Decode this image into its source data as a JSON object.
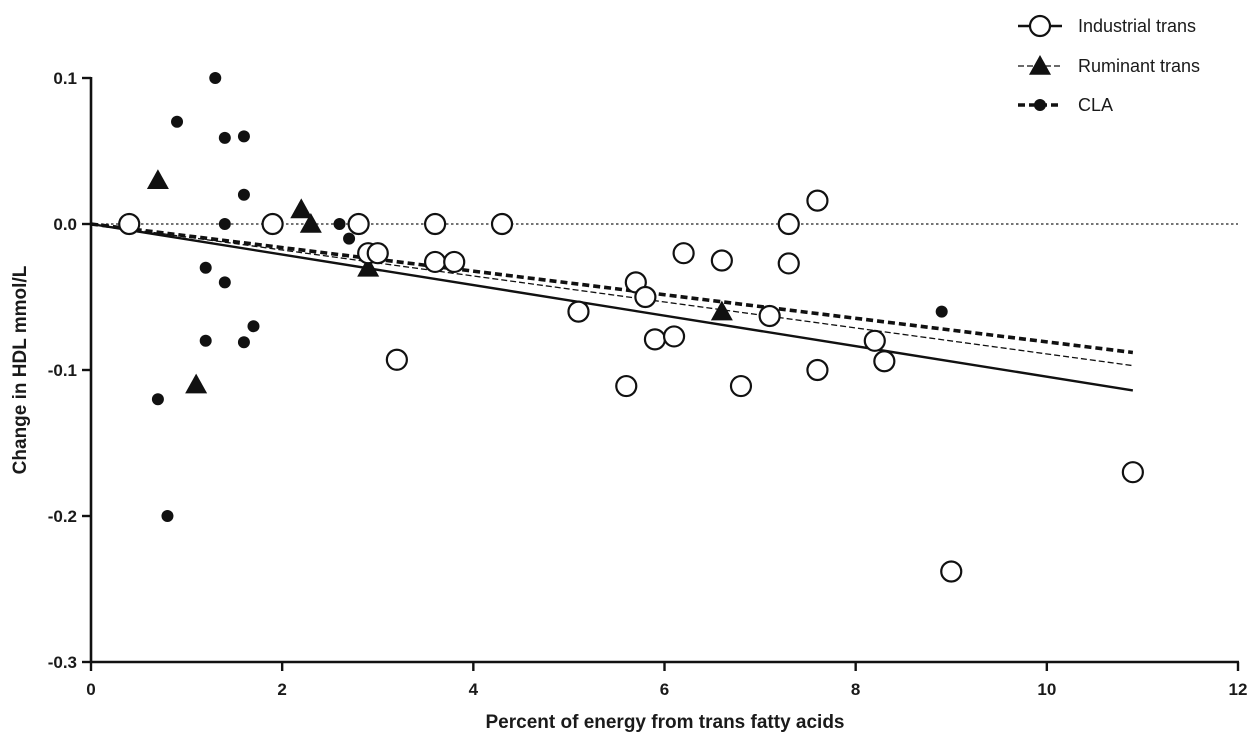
{
  "chart_data": {
    "type": "scatter",
    "title": "",
    "xlabel": "Percent of energy from trans fatty acids",
    "ylabel": "Change in HDL mmol/L",
    "xlim": [
      0,
      12
    ],
    "ylim": [
      -0.3,
      0.1
    ],
    "x_ticks": [
      0,
      2,
      4,
      6,
      8,
      10,
      12
    ],
    "x_tick_labels": [
      "0",
      "2",
      "4",
      "6",
      "8",
      "10",
      "12"
    ],
    "y_ticks": [
      -0.3,
      -0.2,
      -0.1,
      0.0,
      0.1
    ],
    "y_tick_labels": [
      "-0.3",
      "-0.2",
      "-0.1",
      "0.0",
      "0.1"
    ],
    "grid": false,
    "reference_line_y": 0,
    "legend_position": "top-right",
    "series": [
      {
        "name": "Industrial trans",
        "marker": "open-circle",
        "line_style": "solid",
        "points": [
          [
            0.4,
            0.0
          ],
          [
            1.9,
            0.0
          ],
          [
            2.8,
            0.0
          ],
          [
            2.9,
            -0.02
          ],
          [
            3.0,
            -0.02
          ],
          [
            3.2,
            -0.093
          ],
          [
            3.6,
            0.0
          ],
          [
            3.6,
            -0.026
          ],
          [
            3.8,
            -0.026
          ],
          [
            4.3,
            0.0
          ],
          [
            5.1,
            -0.06
          ],
          [
            5.6,
            -0.111
          ],
          [
            5.7,
            -0.04
          ],
          [
            5.8,
            -0.05
          ],
          [
            5.9,
            -0.079
          ],
          [
            6.1,
            -0.077
          ],
          [
            6.2,
            -0.02
          ],
          [
            6.6,
            -0.025
          ],
          [
            6.8,
            -0.111
          ],
          [
            7.1,
            -0.063
          ],
          [
            7.3,
            0.0
          ],
          [
            7.3,
            -0.027
          ],
          [
            7.6,
            0.016
          ],
          [
            7.6,
            -0.1
          ],
          [
            8.2,
            -0.08
          ],
          [
            8.3,
            -0.094
          ],
          [
            9.0,
            -0.238
          ],
          [
            10.9,
            -0.17
          ]
        ],
        "regression": [
          [
            0,
            0.0
          ],
          [
            10.9,
            -0.114
          ]
        ]
      },
      {
        "name": "Ruminant trans",
        "marker": "filled-triangle",
        "line_style": "thin-dashed",
        "points": [
          [
            0.7,
            0.03
          ],
          [
            1.1,
            -0.11
          ],
          [
            2.2,
            0.01
          ],
          [
            2.3,
            0.0
          ],
          [
            2.9,
            -0.03
          ],
          [
            6.6,
            -0.06
          ]
        ],
        "regression": [
          [
            0,
            0.0
          ],
          [
            10.9,
            -0.097
          ]
        ]
      },
      {
        "name": "CLA",
        "marker": "filled-dot",
        "line_style": "thick-dashed",
        "points": [
          [
            0.7,
            -0.12
          ],
          [
            0.8,
            -0.2
          ],
          [
            0.9,
            0.07
          ],
          [
            1.2,
            -0.03
          ],
          [
            1.2,
            -0.08
          ],
          [
            1.3,
            0.1
          ],
          [
            1.4,
            0.059
          ],
          [
            1.4,
            0.0
          ],
          [
            1.4,
            -0.04
          ],
          [
            1.6,
            0.06
          ],
          [
            1.6,
            0.02
          ],
          [
            1.6,
            -0.081
          ],
          [
            1.7,
            -0.07
          ],
          [
            2.6,
            0.0
          ],
          [
            2.7,
            -0.01
          ],
          [
            8.9,
            -0.06
          ]
        ],
        "regression": [
          [
            0,
            0.0
          ],
          [
            10.9,
            -0.088
          ]
        ]
      }
    ]
  }
}
